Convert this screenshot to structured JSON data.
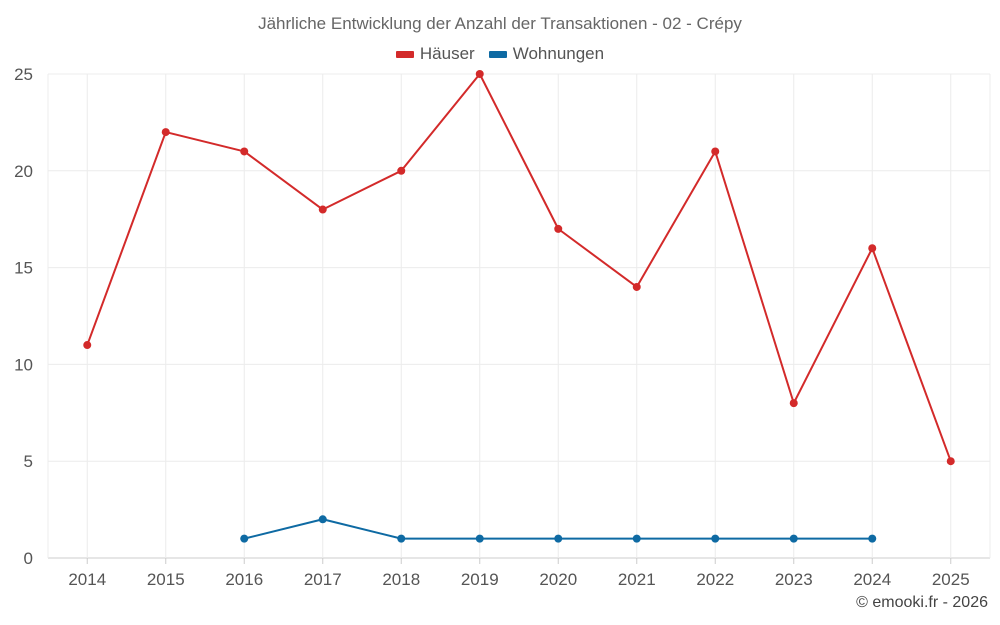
{
  "chart_data": {
    "type": "line",
    "title": "Jährliche Entwicklung der Anzahl der Transaktionen - 02 - Crépy",
    "xlabel": "",
    "ylabel": "",
    "categories": [
      "2014",
      "2015",
      "2016",
      "2017",
      "2018",
      "2019",
      "2020",
      "2021",
      "2022",
      "2023",
      "2024",
      "2025"
    ],
    "ylim": [
      0,
      25
    ],
    "yticks": [
      0,
      5,
      10,
      15,
      20,
      25
    ],
    "grid": true,
    "legend_position": "top-center",
    "series": [
      {
        "name": "Häuser",
        "color": "#d32a2a",
        "values": [
          11,
          22,
          21,
          18,
          20,
          25,
          17,
          14,
          21,
          8,
          16,
          5
        ]
      },
      {
        "name": "Wohnungen",
        "color": "#0e6aa3",
        "values": [
          null,
          null,
          1,
          2,
          1,
          1,
          1,
          1,
          1,
          1,
          1,
          null
        ]
      }
    ]
  },
  "credit": "© emooki.fr - 2026"
}
